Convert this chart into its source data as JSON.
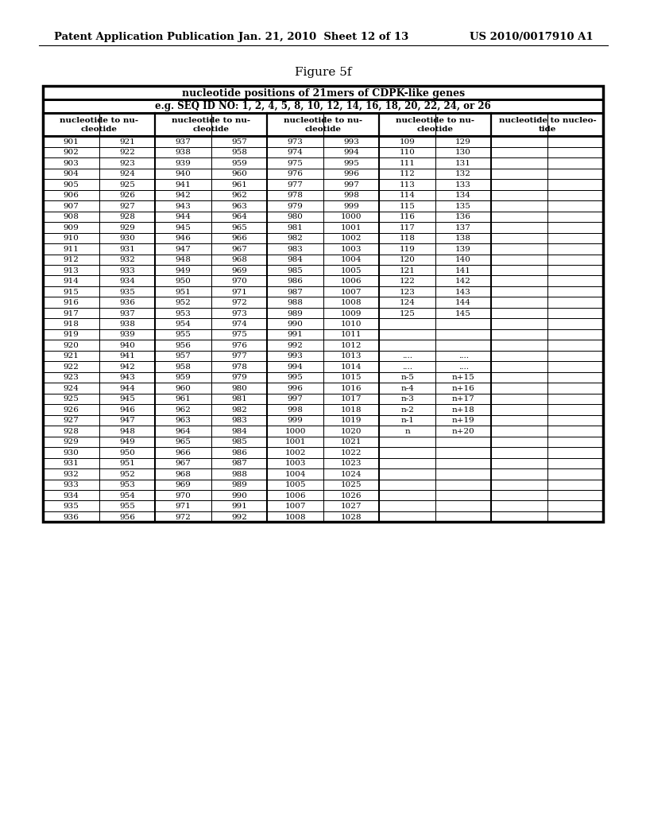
{
  "header_text_left": "Patent Application Publication",
  "header_text_mid": "Jan. 21, 2010  Sheet 12 of 13",
  "header_text_right": "US 2010/0017910 A1",
  "figure_label": "Figure 5f",
  "title_row1": "nucleotide positions of 21mers of CDPK-like genes",
  "title_row2": "e.g. SEQ ID NO: 1, 2, 4, 5, 8, 10, 12, 14, 16, 18, 20, 22, 24, or 26",
  "col_headers": [
    [
      "nucleotide to nu-",
      "cleotide"
    ],
    [
      "nucleotide to nu-",
      "cleotide"
    ],
    [
      "nucleotide to nu-",
      "cleotide"
    ],
    [
      "nucleotide to nu-",
      "cleotide"
    ],
    [
      "nucleotide to nucleo-",
      "tide"
    ]
  ],
  "num_data_cols": 10,
  "rows": [
    [
      "901",
      "921",
      "937",
      "957",
      "973",
      "993",
      "109",
      "129",
      "",
      ""
    ],
    [
      "902",
      "922",
      "938",
      "958",
      "974",
      "994",
      "110",
      "130",
      "",
      ""
    ],
    [
      "903",
      "923",
      "939",
      "959",
      "975",
      "995",
      "111",
      "131",
      "",
      ""
    ],
    [
      "904",
      "924",
      "940",
      "960",
      "976",
      "996",
      "112",
      "132",
      "",
      ""
    ],
    [
      "905",
      "925",
      "941",
      "961",
      "977",
      "997",
      "113",
      "133",
      "",
      ""
    ],
    [
      "906",
      "926",
      "942",
      "962",
      "978",
      "998",
      "114",
      "134",
      "",
      ""
    ],
    [
      "907",
      "927",
      "943",
      "963",
      "979",
      "999",
      "115",
      "135",
      "",
      ""
    ],
    [
      "908",
      "928",
      "944",
      "964",
      "980",
      "1000",
      "116",
      "136",
      "",
      ""
    ],
    [
      "909",
      "929",
      "945",
      "965",
      "981",
      "1001",
      "117",
      "137",
      "",
      ""
    ],
    [
      "910",
      "930",
      "946",
      "966",
      "982",
      "1002",
      "118",
      "138",
      "",
      ""
    ],
    [
      "911",
      "931",
      "947",
      "967",
      "983",
      "1003",
      "119",
      "139",
      "",
      ""
    ],
    [
      "912",
      "932",
      "948",
      "968",
      "984",
      "1004",
      "120",
      "140",
      "",
      ""
    ],
    [
      "913",
      "933",
      "949",
      "969",
      "985",
      "1005",
      "121",
      "141",
      "",
      ""
    ],
    [
      "914",
      "934",
      "950",
      "970",
      "986",
      "1006",
      "122",
      "142",
      "",
      ""
    ],
    [
      "915",
      "935",
      "951",
      "971",
      "987",
      "1007",
      "123",
      "143",
      "",
      ""
    ],
    [
      "916",
      "936",
      "952",
      "972",
      "988",
      "1008",
      "124",
      "144",
      "",
      ""
    ],
    [
      "917",
      "937",
      "953",
      "973",
      "989",
      "1009",
      "125",
      "145",
      "",
      ""
    ],
    [
      "918",
      "938",
      "954",
      "974",
      "990",
      "1010",
      "",
      "",
      "",
      ""
    ],
    [
      "919",
      "939",
      "955",
      "975",
      "991",
      "1011",
      "",
      "",
      "",
      ""
    ],
    [
      "920",
      "940",
      "956",
      "976",
      "992",
      "1012",
      "",
      "",
      "",
      ""
    ],
    [
      "921",
      "941",
      "957",
      "977",
      "993",
      "1013",
      "....",
      "....",
      "",
      ""
    ],
    [
      "922",
      "942",
      "958",
      "978",
      "994",
      "1014",
      "....",
      "....",
      "",
      ""
    ],
    [
      "923",
      "943",
      "959",
      "979",
      "995",
      "1015",
      "n-5",
      "n+15",
      "",
      ""
    ],
    [
      "924",
      "944",
      "960",
      "980",
      "996",
      "1016",
      "n-4",
      "n+16",
      "",
      ""
    ],
    [
      "925",
      "945",
      "961",
      "981",
      "997",
      "1017",
      "n-3",
      "n+17",
      "",
      ""
    ],
    [
      "926",
      "946",
      "962",
      "982",
      "998",
      "1018",
      "n-2",
      "n+18",
      "",
      ""
    ],
    [
      "927",
      "947",
      "963",
      "983",
      "999",
      "1019",
      "n-1",
      "n+19",
      "",
      ""
    ],
    [
      "928",
      "948",
      "964",
      "984",
      "1000",
      "1020",
      "n",
      "n+20",
      "",
      ""
    ],
    [
      "929",
      "949",
      "965",
      "985",
      "1001",
      "1021",
      "",
      "",
      "",
      ""
    ],
    [
      "930",
      "950",
      "966",
      "986",
      "1002",
      "1022",
      "",
      "",
      "",
      ""
    ],
    [
      "931",
      "951",
      "967",
      "987",
      "1003",
      "1023",
      "",
      "",
      "",
      ""
    ],
    [
      "932",
      "952",
      "968",
      "988",
      "1004",
      "1024",
      "",
      "",
      "",
      ""
    ],
    [
      "933",
      "953",
      "969",
      "989",
      "1005",
      "1025",
      "",
      "",
      "",
      ""
    ],
    [
      "934",
      "954",
      "970",
      "990",
      "1006",
      "1026",
      "",
      "",
      "",
      ""
    ],
    [
      "935",
      "955",
      "971",
      "991",
      "1007",
      "1027",
      "",
      "",
      "",
      ""
    ],
    [
      "936",
      "956",
      "972",
      "992",
      "1008",
      "1028",
      "",
      "",
      "",
      ""
    ]
  ],
  "background_color": "#ffffff",
  "text_color": "#000000"
}
